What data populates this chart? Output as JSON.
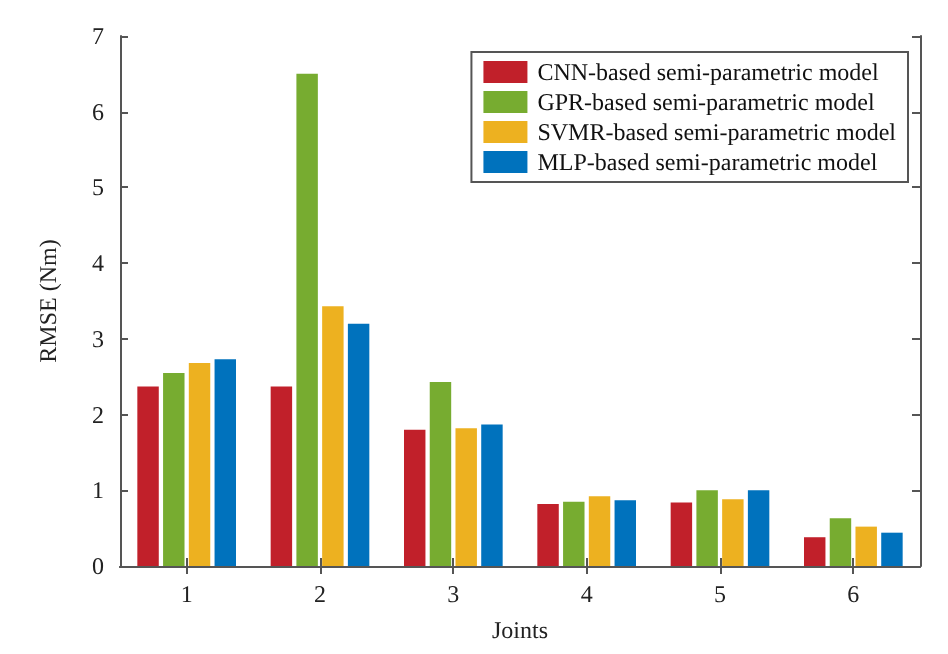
{
  "chart_data": {
    "type": "bar",
    "xlabel": "Joints",
    "ylabel": "RMSE (Nm)",
    "categories": [
      "1",
      "2",
      "3",
      "4",
      "5",
      "6"
    ],
    "series": [
      {
        "name": "CNN-based semi-parametric model",
        "color": "#c1202a",
        "values": [
          2.37,
          2.37,
          1.8,
          0.82,
          0.84,
          0.38
        ]
      },
      {
        "name": "GPR-based semi-parametric model",
        "color": "#77ac30",
        "values": [
          2.55,
          6.5,
          2.43,
          0.85,
          1.0,
          0.63
        ]
      },
      {
        "name": "SVMR-based semi-parametric model",
        "color": "#edb120",
        "values": [
          2.68,
          3.43,
          1.82,
          0.92,
          0.88,
          0.52
        ]
      },
      {
        "name": "MLP-based semi-parametric model",
        "color": "#0072bd",
        "values": [
          2.73,
          3.2,
          1.87,
          0.87,
          1.0,
          0.44
        ]
      }
    ],
    "ylim": [
      0,
      7
    ],
    "yticks": [
      0,
      1,
      2,
      3,
      4,
      5,
      6,
      7
    ],
    "grid": false,
    "legend": "top right"
  }
}
